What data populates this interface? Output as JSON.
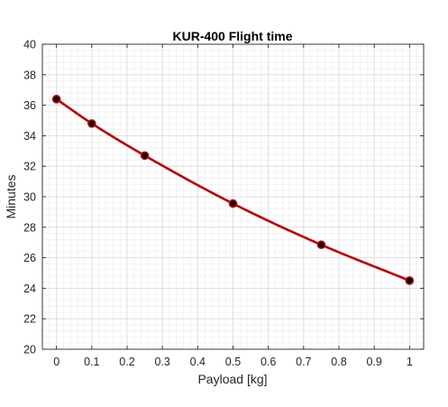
{
  "chart_data": {
    "type": "line",
    "title": "KUR-400 Flight time",
    "xlabel": "Payload [kg]",
    "ylabel": "Minutes",
    "xlim": [
      -0.04,
      1.04
    ],
    "ylim": [
      20,
      40
    ],
    "xticks": [
      0,
      0.1,
      0.2,
      0.3,
      0.4,
      0.5,
      0.6,
      0.7,
      0.8,
      0.9,
      1
    ],
    "xtick_labels": [
      "0",
      "0.1",
      "0.2",
      "0.3",
      "0.4",
      "0.5",
      "0.6",
      "0.7",
      "0.8",
      "0.9",
      "1"
    ],
    "yticks": [
      20,
      22,
      24,
      26,
      28,
      30,
      32,
      34,
      36,
      38,
      40
    ],
    "ytick_labels": [
      "20",
      "22",
      "24",
      "26",
      "28",
      "30",
      "32",
      "34",
      "36",
      "38",
      "40"
    ],
    "grid": true,
    "minor_grid": true,
    "series": [
      {
        "x": [
          0,
          0.1,
          0.25,
          0.5,
          0.75,
          1
        ],
        "values": [
          36.4,
          34.8,
          32.7,
          29.55,
          26.85,
          24.5
        ],
        "line_color": "#cc0000",
        "marker_color": "#000000",
        "marker_edge_color": "#cc0000"
      }
    ]
  }
}
